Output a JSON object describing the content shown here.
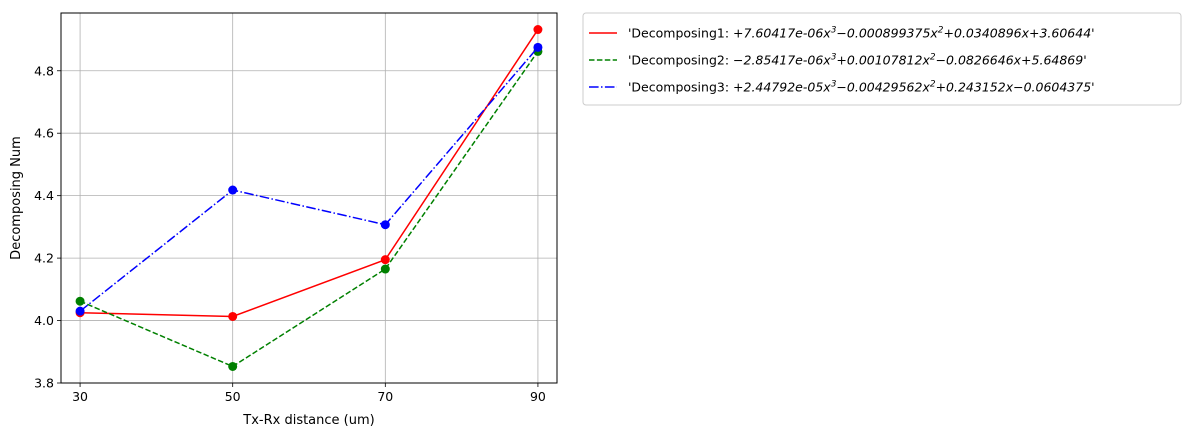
{
  "chart_data": {
    "type": "line",
    "title": "",
    "xlabel": "Tx-Rx distance (um)",
    "ylabel": "Decomposing Num",
    "x": [
      30,
      50,
      70,
      90
    ],
    "xticks": [
      "30",
      "50",
      "70",
      "90"
    ],
    "yticks": [
      "3.8",
      "4.0",
      "4.2",
      "4.4",
      "4.6",
      "4.8"
    ],
    "xlim": [
      27.5,
      92.5
    ],
    "ylim": [
      3.8,
      4.985
    ],
    "grid": true,
    "legend_position": "outside-right-top",
    "series": [
      {
        "name": "'Decomposing1: +7.60417e-06x^3-0.000899375x^2+0.0340896x+3.60644'",
        "legend_parts": [
          "'Decomposing1: ",
          "+7.60417e-06x",
          "3",
          "−0.000899375x",
          "2",
          "+0.0340896x+3.60644",
          "'"
        ],
        "values": [
          4.025,
          4.013,
          4.195,
          4.932
        ],
        "color": "#ff0000",
        "linestyle": "solid"
      },
      {
        "name": "'Decomposing2: -2.85417e-06x^3+0.00107812x^2-0.0826646x+5.64869'",
        "legend_parts": [
          "'Decomposing2: ",
          "−2.85417e-06x",
          "3",
          "+0.00107812x",
          "2",
          "−0.0826646x+5.64869",
          "'"
        ],
        "values": [
          4.062,
          3.853,
          4.165,
          4.862
        ],
        "color": "#008000",
        "linestyle": "dashed"
      },
      {
        "name": "'Decomposing3: +2.44792e-05x^3-0.00429562x^2+0.243152x-0.0604375'",
        "legend_parts": [
          "'Decomposing3: ",
          "+2.44792e-05x",
          "3",
          "−0.00429562x",
          "2",
          "+0.243152x−0.0604375",
          "'"
        ],
        "values": [
          4.03,
          4.418,
          4.307,
          4.875
        ],
        "color": "#0000ff",
        "linestyle": "dashdot"
      }
    ]
  }
}
